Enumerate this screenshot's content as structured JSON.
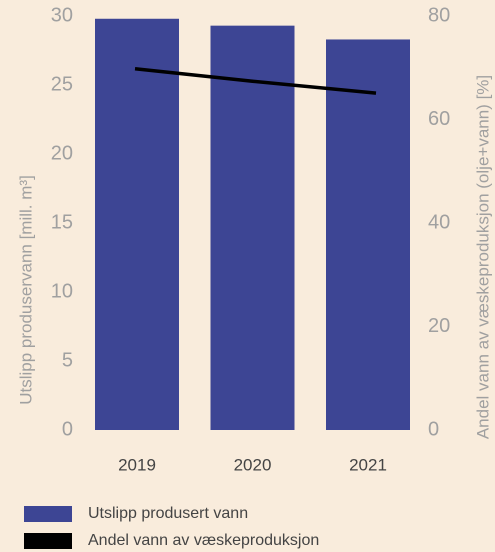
{
  "chart_data": {
    "type": "bar",
    "categories": [
      "2019",
      "2020",
      "2021"
    ],
    "series": [
      {
        "name": "Utslipp produsert vann",
        "color": "#3d4594",
        "values": [
          29.8,
          29.3,
          28.3
        ]
      },
      {
        "name": "Andel vann av væskeproduksjon",
        "color": "#000000",
        "type": "line",
        "axis": "y2",
        "values": [
          69.8,
          67.4,
          65.1
        ]
      }
    ],
    "ylabel": "Utslipp produservann [mill. m³]",
    "y2label": "Andel vann av væskeproduksjon (olje+vann) [%]",
    "ylim": [
      0,
      30
    ],
    "yticks": [
      0,
      5,
      10,
      15,
      20,
      25,
      30
    ],
    "y2lim": [
      0,
      80
    ],
    "y2ticks": [
      0,
      20,
      40,
      60,
      80
    ],
    "legend": "bottom",
    "grid": false
  }
}
